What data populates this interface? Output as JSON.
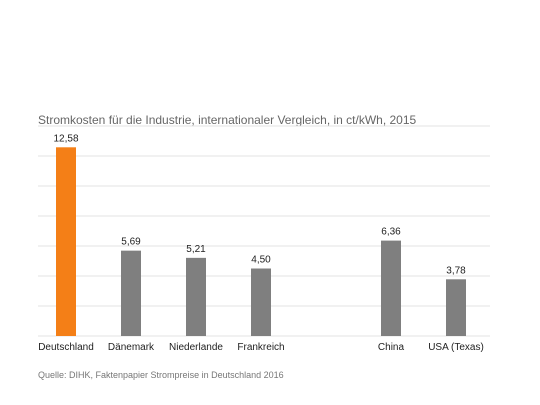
{
  "title": "Stromkosten  für die Industrie,  internationaler Vergleich, in ct/kWh, 2015",
  "source": "Quelle: DIHK, Faktenpapier Strompreise in Deutschland 2016",
  "colors": {
    "highlight": "#f47f17",
    "default": "#7f7f7f",
    "grid": "#e3e3e3"
  },
  "chart_data": {
    "type": "bar",
    "title": "Stromkosten  für die Industrie,  internationaler Vergleich, in ct/kWh, 2015",
    "categories": [
      "Deutschland",
      "Dänemark",
      "Niederlande",
      "Frankreich",
      "China",
      "USA (Texas)"
    ],
    "values": [
      12.58,
      5.69,
      5.21,
      4.5,
      6.36,
      3.78
    ],
    "value_labels": [
      "12,58",
      "5,69",
      "5,21",
      "4,50",
      "6,36",
      "3,78"
    ],
    "highlight_index": 0,
    "xlabel": "",
    "ylabel": "",
    "ylim": [
      0,
      14
    ],
    "grid": true,
    "legend": "none"
  }
}
